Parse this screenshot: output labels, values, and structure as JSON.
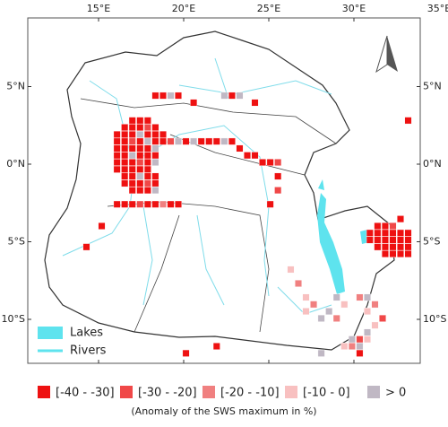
{
  "map": {
    "lon_ticks": [
      {
        "value": 15,
        "label": "15°E"
      },
      {
        "value": 20,
        "label": "20°E"
      },
      {
        "value": 25,
        "label": "25°E"
      },
      {
        "value": 30,
        "label": "30°E"
      },
      {
        "value": 35,
        "label": "35°E"
      }
    ],
    "lat_ticks": [
      {
        "value": 5,
        "label": "5°N"
      },
      {
        "value": 0,
        "label": "0°N"
      },
      {
        "value": -5,
        "label": "5°S"
      },
      {
        "value": -10,
        "label": "10°S"
      }
    ],
    "map_legend": [
      {
        "label": "Lakes",
        "color": "#5ee3ee"
      },
      {
        "label": "Rivers",
        "color": "#5ee3ee"
      }
    ],
    "legend": [
      {
        "label": "[-40 - -30]",
        "color": "#ee1111"
      },
      {
        "label": "[-30 - -20]",
        "color": "#f04848"
      },
      {
        "label": "[-20 - -10]",
        "color": "#f08080"
      },
      {
        "label": "[-10 - 0]",
        "color": "#f8c0c0"
      },
      {
        "label": "> 0",
        "color": "#c0b8c4"
      }
    ],
    "caption": "(Anomaly of the SWS maximum in %)",
    "cells": [
      [
        17.0,
        2.8,
        0
      ],
      [
        17.45,
        2.8,
        0
      ],
      [
        17.9,
        2.8,
        0
      ],
      [
        16.55,
        2.35,
        0
      ],
      [
        17.0,
        2.35,
        0
      ],
      [
        17.45,
        2.35,
        0
      ],
      [
        17.9,
        2.35,
        1
      ],
      [
        18.35,
        2.35,
        0
      ],
      [
        16.1,
        1.9,
        0
      ],
      [
        16.55,
        1.9,
        0
      ],
      [
        17.0,
        1.9,
        0
      ],
      [
        17.45,
        1.9,
        4
      ],
      [
        17.9,
        1.9,
        0
      ],
      [
        18.35,
        1.9,
        0
      ],
      [
        18.8,
        1.9,
        0
      ],
      [
        16.1,
        1.45,
        0
      ],
      [
        16.55,
        1.45,
        0
      ],
      [
        17.0,
        1.45,
        1
      ],
      [
        17.45,
        1.45,
        0
      ],
      [
        17.9,
        1.45,
        4
      ],
      [
        18.35,
        1.45,
        0
      ],
      [
        16.1,
        1.0,
        0
      ],
      [
        16.55,
        1.0,
        0
      ],
      [
        17.0,
        1.0,
        0
      ],
      [
        17.45,
        1.0,
        0
      ],
      [
        17.9,
        1.0,
        0
      ],
      [
        18.35,
        1.0,
        4
      ],
      [
        16.1,
        0.55,
        0
      ],
      [
        16.55,
        0.55,
        0
      ],
      [
        17.0,
        0.55,
        4
      ],
      [
        17.45,
        0.55,
        0
      ],
      [
        17.9,
        0.55,
        0
      ],
      [
        18.35,
        0.55,
        0
      ],
      [
        16.1,
        0.1,
        0
      ],
      [
        16.55,
        0.1,
        0
      ],
      [
        17.0,
        0.1,
        0
      ],
      [
        17.45,
        0.1,
        1
      ],
      [
        17.9,
        0.1,
        0
      ],
      [
        18.35,
        0.1,
        4
      ],
      [
        16.1,
        -0.35,
        0
      ],
      [
        16.55,
        -0.35,
        0
      ],
      [
        17.0,
        -0.35,
        0
      ],
      [
        17.45,
        -0.35,
        0
      ],
      [
        17.9,
        -0.35,
        0
      ],
      [
        16.55,
        -0.8,
        0
      ],
      [
        17.0,
        -0.8,
        0
      ],
      [
        17.45,
        -0.8,
        4
      ],
      [
        17.9,
        -0.8,
        0
      ],
      [
        18.35,
        -0.8,
        0
      ],
      [
        16.55,
        -1.25,
        0
      ],
      [
        17.0,
        -1.25,
        0
      ],
      [
        17.45,
        -1.25,
        0
      ],
      [
        17.9,
        -1.25,
        1
      ],
      [
        18.35,
        -1.25,
        0
      ],
      [
        17.0,
        -1.7,
        0
      ],
      [
        17.45,
        -1.7,
        0
      ],
      [
        17.9,
        -1.7,
        0
      ],
      [
        18.35,
        -1.7,
        4
      ],
      [
        16.1,
        -2.6,
        0
      ],
      [
        16.55,
        -2.6,
        0
      ],
      [
        17.0,
        -2.6,
        0
      ],
      [
        17.45,
        -2.6,
        1
      ],
      [
        17.9,
        -2.6,
        0
      ],
      [
        18.35,
        -2.6,
        0
      ],
      [
        18.8,
        -2.6,
        2
      ],
      [
        19.25,
        -2.6,
        0
      ],
      [
        19.7,
        -2.6,
        0
      ],
      [
        18.35,
        4.4,
        0
      ],
      [
        18.8,
        4.4,
        0
      ],
      [
        19.25,
        4.4,
        4
      ],
      [
        19.7,
        4.4,
        0
      ],
      [
        20.6,
        3.95,
        0
      ],
      [
        22.4,
        4.4,
        4
      ],
      [
        22.85,
        4.4,
        0
      ],
      [
        23.3,
        4.4,
        4
      ],
      [
        24.2,
        3.95,
        0
      ],
      [
        18.8,
        1.45,
        0
      ],
      [
        19.25,
        1.45,
        1
      ],
      [
        19.7,
        1.45,
        4
      ],
      [
        20.15,
        1.45,
        0
      ],
      [
        20.6,
        1.45,
        4
      ],
      [
        21.05,
        1.45,
        0
      ],
      [
        21.5,
        1.45,
        0
      ],
      [
        21.95,
        1.45,
        0
      ],
      [
        22.4,
        1.45,
        4
      ],
      [
        22.85,
        1.45,
        0
      ],
      [
        23.3,
        1.0,
        0
      ],
      [
        23.75,
        0.55,
        0
      ],
      [
        24.2,
        0.55,
        0
      ],
      [
        24.65,
        0.1,
        0
      ],
      [
        25.1,
        0.1,
        0
      ],
      [
        25.55,
        0.1,
        1
      ],
      [
        25.55,
        -0.8,
        0
      ],
      [
        25.55,
        -1.7,
        1
      ],
      [
        25.1,
        -2.6,
        0
      ],
      [
        31.4,
        -4.0,
        0
      ],
      [
        31.85,
        -4.0,
        0
      ],
      [
        32.3,
        -4.0,
        1
      ],
      [
        32.75,
        -3.55,
        0
      ],
      [
        30.95,
        -4.45,
        0
      ],
      [
        31.4,
        -4.45,
        0
      ],
      [
        31.85,
        -4.45,
        0
      ],
      [
        32.3,
        -4.45,
        0
      ],
      [
        32.75,
        -4.45,
        0
      ],
      [
        33.2,
        -4.45,
        0
      ],
      [
        30.95,
        -4.9,
        0
      ],
      [
        31.4,
        -4.9,
        0
      ],
      [
        31.85,
        -4.9,
        0
      ],
      [
        32.3,
        -4.9,
        0
      ],
      [
        32.75,
        -4.9,
        0
      ],
      [
        33.2,
        -4.9,
        0
      ],
      [
        31.4,
        -5.35,
        0
      ],
      [
        31.85,
        -5.35,
        0
      ],
      [
        32.3,
        -5.35,
        0
      ],
      [
        32.75,
        -5.35,
        0
      ],
      [
        33.2,
        -5.35,
        0
      ],
      [
        31.85,
        -5.8,
        0
      ],
      [
        32.3,
        -5.8,
        0
      ],
      [
        32.75,
        -5.8,
        0
      ],
      [
        33.2,
        -5.8,
        0
      ],
      [
        27.2,
        -8.6,
        3
      ],
      [
        27.65,
        -9.05,
        2
      ],
      [
        27.2,
        -9.5,
        3
      ],
      [
        28.1,
        -9.95,
        4
      ],
      [
        28.55,
        -9.5,
        4
      ],
      [
        29.0,
        -9.95,
        2
      ],
      [
        29.45,
        -9.05,
        3
      ],
      [
        29.0,
        -8.6,
        4
      ],
      [
        30.35,
        -8.6,
        2
      ],
      [
        30.8,
        -8.6,
        4
      ],
      [
        31.25,
        -9.05,
        2
      ],
      [
        30.8,
        -9.5,
        3
      ],
      [
        31.7,
        -9.95,
        1
      ],
      [
        31.25,
        -10.4,
        3
      ],
      [
        30.8,
        -10.85,
        4
      ],
      [
        29.9,
        -11.3,
        4
      ],
      [
        30.35,
        -11.3,
        1
      ],
      [
        30.35,
        -11.75,
        4
      ],
      [
        29.9,
        -11.75,
        2
      ],
      [
        30.35,
        -12.2,
        0
      ],
      [
        30.8,
        -11.3,
        3
      ],
      [
        29.45,
        -11.75,
        3
      ],
      [
        26.3,
        -6.8,
        3
      ],
      [
        26.75,
        -7.7,
        2
      ],
      [
        14.3,
        -5.35,
        0
      ],
      [
        15.2,
        -4.0,
        0
      ],
      [
        20.15,
        -12.2,
        0
      ],
      [
        21.95,
        -11.75,
        0
      ],
      [
        33.2,
        2.8,
        0
      ],
      [
        28.1,
        -12.2,
        4
      ]
    ]
  }
}
